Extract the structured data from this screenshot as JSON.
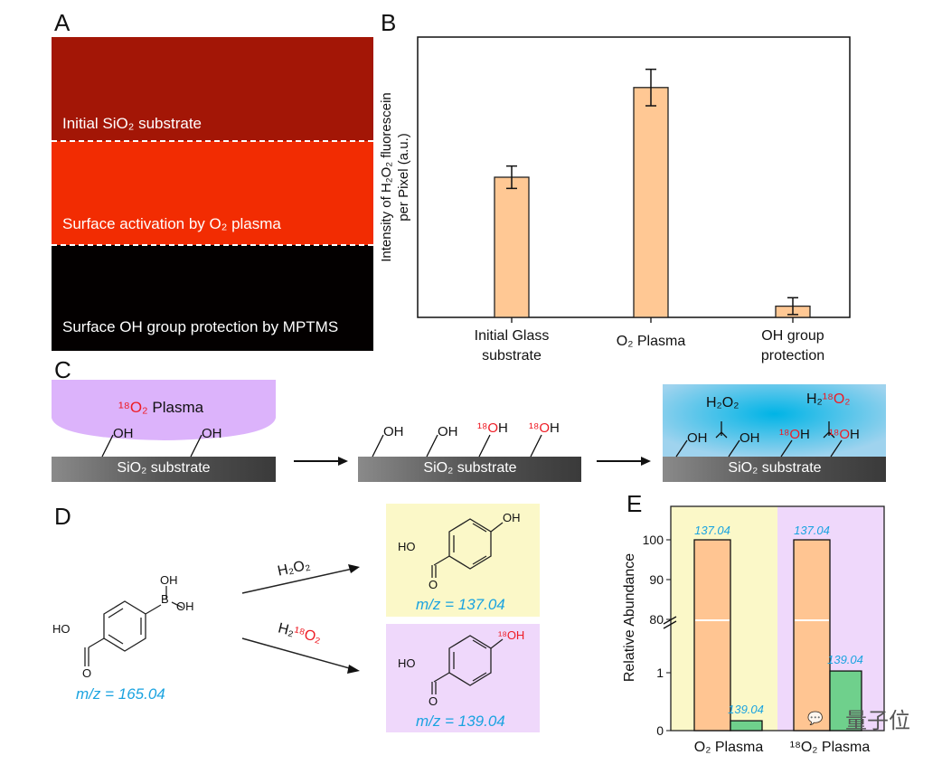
{
  "panels": {
    "a": {
      "label": "A",
      "bands": [
        {
          "text": "Initial SiO₂ substrate",
          "color": "#a31606"
        },
        {
          "text": "Surface activation by O₂ plasma",
          "color": "#f22c02"
        },
        {
          "text": "Surface OH group protection by MPTMS",
          "color": "#030000"
        }
      ]
    },
    "b": {
      "label": "B"
    },
    "c": {
      "label": "C",
      "plasma_iso": "¹⁸O₂",
      "plasma_word": " Plasma",
      "substrate": "SiO₂ substrate",
      "oh": "OH",
      "oh_iso": "¹⁸O",
      "h": "H",
      "h2o2": "H₂O₂",
      "h2_prefix": "H₂",
      "o2_iso": "¹⁸O₂"
    },
    "d": {
      "label": "D",
      "reactant_mz": "m/z = 165.04",
      "reagent1": "H₂O₂",
      "reagent2_h": "H₂",
      "reagent2_o": "¹⁸O₂",
      "product1_mz": "m/z = 137.04",
      "product2_mz": "m/z = 139.04",
      "atoms": {
        "ho": "HO",
        "o": "O",
        "oh": "OH",
        "b": "B",
        "oh_iso": "¹⁸OH"
      }
    },
    "e": {
      "label": "E"
    }
  },
  "watermark": "量子位",
  "chart_data": [
    {
      "type": "bar",
      "title": "",
      "ylabel_line1": "Intensity of H₂O₂ fluorescein",
      "ylabel_line2": "per Pixel (a.u.)",
      "xlabel": "",
      "categories": [
        "Initial Glass substrate",
        "O₂ Plasma",
        "OH group protection"
      ],
      "category_lines": [
        [
          "Initial Glass",
          "substrate"
        ],
        [
          "O₂ Plasma"
        ],
        [
          "OH group",
          "protection"
        ]
      ],
      "values": [
        0.5,
        0.82,
        0.04
      ],
      "errors": [
        0.04,
        0.065,
        0.03
      ],
      "ylim": [
        0,
        1
      ],
      "y_ticks_shown": false,
      "bar_color": "#ffc894",
      "grid": false
    },
    {
      "type": "bar",
      "title": "",
      "ylabel": "Relative Abundance",
      "categories": [
        "O₂ Plasma",
        "¹⁸O₂ Plasma"
      ],
      "series": [
        {
          "values": [
            100,
            100
          ],
          "labels": [
            "137.04",
            "137.04"
          ],
          "color": "#ffc592"
        },
        {
          "values": [
            0.17,
            1.03
          ],
          "labels": [
            "139.04",
            "139.04"
          ],
          "color": "#6fd08c"
        }
      ],
      "y_ticks": [
        "0",
        "1",
        "80",
        "90",
        "100"
      ],
      "axis_break": [
        1.5,
        78
      ],
      "background_colors": [
        "#fbf8c8",
        "#efd8fb"
      ],
      "label_color": "#1aa3e0",
      "grid": false
    }
  ]
}
